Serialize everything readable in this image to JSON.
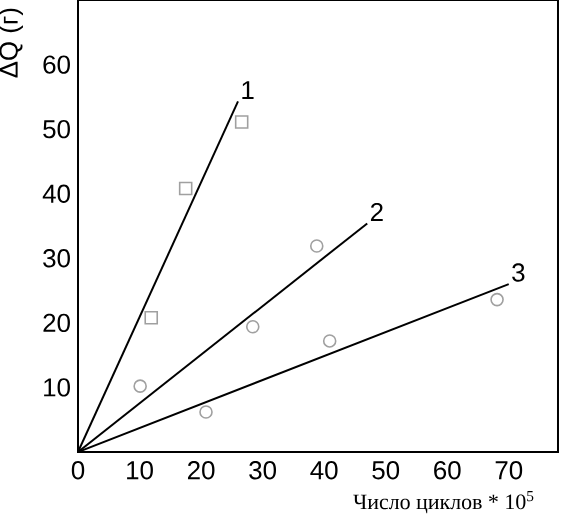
{
  "chart_data": {
    "type": "line",
    "xlabel": "Число циклов * 10$^{5}$",
    "ylabel": "ΔQ (г)",
    "xlim": [
      0,
      78
    ],
    "ylim": [
      0,
      70
    ],
    "xticks": [
      0,
      10,
      20,
      30,
      40,
      50,
      60,
      70
    ],
    "yticks": [
      10,
      20,
      30,
      40,
      50,
      60
    ],
    "grid": false,
    "series": [
      {
        "name": "1",
        "color": "#000000",
        "x": [
          0,
          26
        ],
        "values": [
          0,
          54.3
        ],
        "marker": "none"
      },
      {
        "name": "2",
        "color": "#000000",
        "x": [
          0,
          47
        ],
        "values": [
          0,
          35.4
        ],
        "marker": "none"
      },
      {
        "name": "3",
        "color": "#000000",
        "x": [
          0,
          70
        ],
        "values": [
          0,
          26
        ],
        "marker": "none"
      },
      {
        "type": "scatter",
        "color": "#a0a0a0",
        "marker": "square",
        "x": [
          11.9,
          17.5,
          26.6
        ],
        "values": [
          20.8,
          40.8,
          51.1
        ]
      },
      {
        "type": "scatter",
        "color": "#a0a0a0",
        "marker": "circle",
        "x": [
          10.1,
          28.4,
          38.8
        ],
        "values": [
          10.2,
          19.4,
          31.9
        ]
      },
      {
        "type": "scatter",
        "color": "#a0a0a0",
        "marker": "circle",
        "x": [
          20.8,
          40.9,
          68.1
        ],
        "values": [
          6.2,
          17.2,
          23.6
        ]
      }
    ]
  }
}
